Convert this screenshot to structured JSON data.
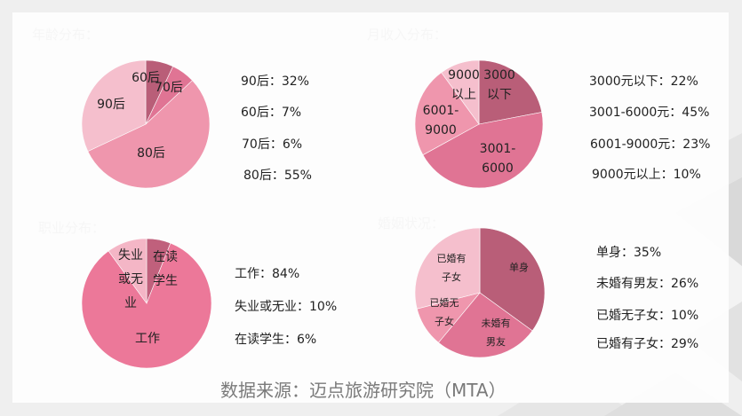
{
  "colors": {
    "dark": "#b95e78",
    "medium": "#e07494",
    "light_medium": "#ef96ad",
    "lightest": "#f5bfcd",
    "work_pink": "#ec7899",
    "source_text": "#7a7a7a"
  },
  "source": {
    "text": "数据来源：迈点旅游研究院（MTA）"
  },
  "chart_data": [
    {
      "type": "pie",
      "title": "年龄分布：",
      "categories": [
        "60后",
        "70后",
        "80后",
        "90后"
      ],
      "values": [
        7,
        6,
        55,
        32
      ],
      "slice_colors": [
        "#b95e78",
        "#e07494",
        "#ef96ad",
        "#f5bfcd"
      ],
      "slice_labels": [
        [
          "60后"
        ],
        [
          "70后"
        ],
        [
          "80后"
        ],
        [
          "90后"
        ]
      ],
      "legend": [
        "90后：32%",
        "60后：7%",
        "70后：6%",
        "80后：55%"
      ],
      "start_angle": "12 o'clock, clockwise"
    },
    {
      "type": "pie",
      "title": "月收入分布：",
      "categories": [
        "3000元以下",
        "3001-6000元",
        "6001-9000元",
        "9000元以上"
      ],
      "values": [
        22,
        45,
        23,
        10
      ],
      "slice_colors": [
        "#b95e78",
        "#e07494",
        "#ef96ad",
        "#f5bfcd"
      ],
      "slice_labels": [
        [
          "3000",
          "以下"
        ],
        [
          "3001-",
          "6000"
        ],
        [
          "6001-",
          "9000"
        ],
        [
          "9000",
          "以上"
        ]
      ],
      "legend": [
        "3000元以下：22%",
        "3001-6000元：45%",
        "6001-9000元：23%",
        "9000元以上：10%"
      ],
      "start_angle": "12 o'clock, clockwise"
    },
    {
      "type": "pie",
      "title": "职业分布：",
      "categories": [
        "在读学生",
        "工作",
        "失业或无业"
      ],
      "values": [
        6,
        84,
        10
      ],
      "slice_colors": [
        "#c0607c",
        "#ec7899",
        "#f4b6c6"
      ],
      "slice_labels": [
        [
          "在读",
          "学生"
        ],
        [
          "工作"
        ],
        [
          "失业",
          "或无",
          "业"
        ]
      ],
      "legend": [
        "工作：84%",
        "失业或无业：10%",
        "在读学生：6%"
      ],
      "start_angle": "12 o'clock, clockwise"
    },
    {
      "type": "pie",
      "title": "婚姻状况：",
      "categories": [
        "单身",
        "未婚有男友",
        "已婚无子女",
        "已婚有子女"
      ],
      "values": [
        35,
        26,
        10,
        29
      ],
      "slice_colors": [
        "#b95e78",
        "#e07494",
        "#ef96ad",
        "#f5bfcd"
      ],
      "slice_labels": [
        [
          "单身"
        ],
        [
          "未婚有",
          "男友"
        ],
        [
          "已婚无",
          "子女"
        ],
        [
          "已婚有",
          "子女"
        ]
      ],
      "legend": [
        "单身：35%",
        "未婚有男友：26%",
        "已婚无子女：10%",
        "已婚有子女：29%"
      ],
      "start_angle": "12 o'clock, clockwise"
    }
  ]
}
